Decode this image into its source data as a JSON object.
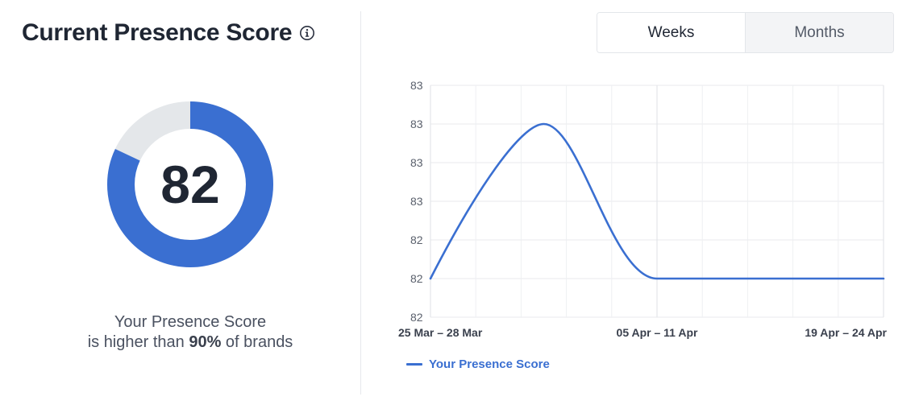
{
  "header": {
    "title": "Current Presence Score",
    "info_icon": "info-circle-icon"
  },
  "score": {
    "value": "82",
    "fraction": 0.82,
    "colors": {
      "filled": "#3a6fd1",
      "remaining": "#e4e7ea"
    }
  },
  "comparison": {
    "line1": "Your Presence Score",
    "prefix": "is higher than",
    "percent": "90%",
    "suffix": "of brands"
  },
  "period_toggle": {
    "options": [
      "Weeks",
      "Months"
    ],
    "selected": "Weeks"
  },
  "chart_data": {
    "type": "line",
    "y_tick_labels": [
      "83",
      "83",
      "83",
      "83",
      "82",
      "82",
      "82"
    ],
    "x_tick_labels": [
      "25 Mar – 28 Mar",
      "05 Apr – 11 Apr",
      "19 Apr – 24 Apr"
    ],
    "x": [
      0,
      1,
      2,
      3,
      4,
      5,
      6,
      7,
      8,
      9,
      10
    ],
    "series": [
      {
        "name": "Your Presence Score",
        "color": "#3a6fd1",
        "values": [
          82.2,
          82.8,
          82.8,
          82.2,
          82.2,
          82.2,
          82.2,
          82.2,
          82.2,
          82.2,
          82.2
        ]
      }
    ],
    "grid": true,
    "legend": "bottom-left"
  }
}
